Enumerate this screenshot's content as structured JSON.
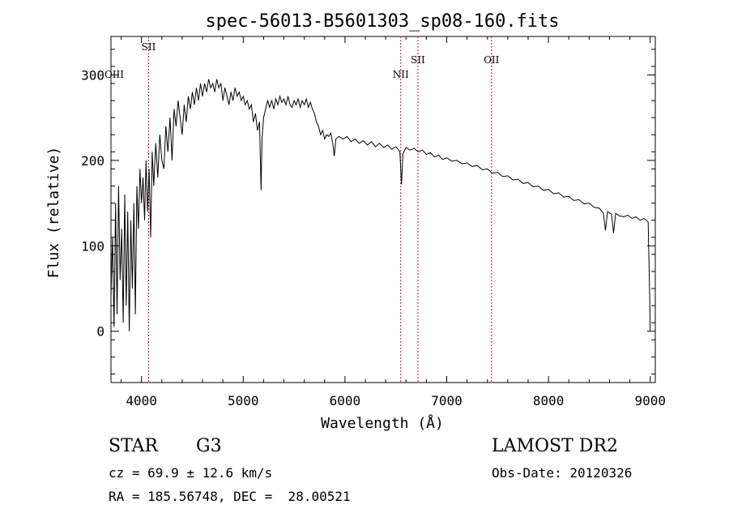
{
  "chart_data": {
    "type": "line",
    "title": "spec-56013-B5601303_sp08-160.fits",
    "xlabel": "Wavelength (Å)",
    "ylabel": "Flux (relative)",
    "xlim": [
      3700,
      9050
    ],
    "ylim": [
      -60,
      345
    ],
    "x_ticks": [
      4000,
      5000,
      6000,
      7000,
      8000,
      9000
    ],
    "y_ticks": [
      0,
      100,
      200,
      300
    ],
    "grid": false,
    "line_color": "#000000",
    "marker_color": "#b22222",
    "series": [
      {
        "values": [
          [
            3700,
            40
          ],
          [
            3715,
            110
          ],
          [
            3730,
            5
          ],
          [
            3745,
            150
          ],
          [
            3760,
            20
          ],
          [
            3775,
            170
          ],
          [
            3790,
            60
          ],
          [
            3805,
            120
          ],
          [
            3820,
            10
          ],
          [
            3835,
            160
          ],
          [
            3850,
            30
          ],
          [
            3865,
            140
          ],
          [
            3880,
            0
          ],
          [
            3895,
            130
          ],
          [
            3910,
            50
          ],
          [
            3925,
            150
          ],
          [
            3940,
            20
          ],
          [
            3955,
            170
          ],
          [
            3970,
            120
          ],
          [
            3985,
            190
          ],
          [
            4000,
            150
          ],
          [
            4015,
            180
          ],
          [
            4030,
            130
          ],
          [
            4045,
            200
          ],
          [
            4060,
            140
          ],
          [
            4075,
            190
          ],
          [
            4090,
            110
          ],
          [
            4105,
            210
          ],
          [
            4120,
            170
          ],
          [
            4140,
            220
          ],
          [
            4160,
            180
          ],
          [
            4180,
            230
          ],
          [
            4200,
            200
          ],
          [
            4220,
            190
          ],
          [
            4240,
            240
          ],
          [
            4260,
            210
          ],
          [
            4280,
            250
          ],
          [
            4300,
            200
          ],
          [
            4320,
            260
          ],
          [
            4340,
            240
          ],
          [
            4360,
            270
          ],
          [
            4380,
            250
          ],
          [
            4400,
            230
          ],
          [
            4420,
            265
          ],
          [
            4440,
            245
          ],
          [
            4460,
            275
          ],
          [
            4480,
            260
          ],
          [
            4500,
            280
          ],
          [
            4520,
            265
          ],
          [
            4540,
            285
          ],
          [
            4560,
            270
          ],
          [
            4580,
            290
          ],
          [
            4600,
            275
          ],
          [
            4620,
            290
          ],
          [
            4640,
            280
          ],
          [
            4660,
            295
          ],
          [
            4680,
            285
          ],
          [
            4700,
            290
          ],
          [
            4720,
            280
          ],
          [
            4740,
            295
          ],
          [
            4760,
            285
          ],
          [
            4780,
            290
          ],
          [
            4800,
            270
          ],
          [
            4820,
            285
          ],
          [
            4840,
            275
          ],
          [
            4860,
            265
          ],
          [
            4880,
            280
          ],
          [
            4900,
            270
          ],
          [
            4920,
            285
          ],
          [
            4940,
            275
          ],
          [
            4960,
            280
          ],
          [
            4980,
            270
          ],
          [
            5000,
            275
          ],
          [
            5020,
            265
          ],
          [
            5040,
            270
          ],
          [
            5060,
            260
          ],
          [
            5080,
            265
          ],
          [
            5100,
            245
          ],
          [
            5120,
            255
          ],
          [
            5140,
            235
          ],
          [
            5160,
            245
          ],
          [
            5175,
            165
          ],
          [
            5185,
            225
          ],
          [
            5200,
            250
          ],
          [
            5220,
            260
          ],
          [
            5240,
            270
          ],
          [
            5260,
            262
          ],
          [
            5280,
            270
          ],
          [
            5300,
            260
          ],
          [
            5320,
            272
          ],
          [
            5340,
            265
          ],
          [
            5360,
            275
          ],
          [
            5380,
            268
          ],
          [
            5400,
            272
          ],
          [
            5420,
            265
          ],
          [
            5440,
            275
          ],
          [
            5460,
            265
          ],
          [
            5480,
            262
          ],
          [
            5500,
            270
          ],
          [
            5520,
            265
          ],
          [
            5540,
            272
          ],
          [
            5560,
            262
          ],
          [
            5580,
            270
          ],
          [
            5600,
            265
          ],
          [
            5620,
            272
          ],
          [
            5640,
            262
          ],
          [
            5660,
            268
          ],
          [
            5680,
            260
          ],
          [
            5700,
            255
          ],
          [
            5720,
            245
          ],
          [
            5740,
            240
          ],
          [
            5760,
            230
          ],
          [
            5780,
            235
          ],
          [
            5800,
            225
          ],
          [
            5820,
            230
          ],
          [
            5840,
            228
          ],
          [
            5860,
            232
          ],
          [
            5880,
            220
          ],
          [
            5895,
            205
          ],
          [
            5910,
            225
          ],
          [
            5940,
            228
          ],
          [
            5980,
            225
          ],
          [
            6020,
            228
          ],
          [
            6060,
            222
          ],
          [
            6100,
            225
          ],
          [
            6140,
            220
          ],
          [
            6180,
            223
          ],
          [
            6220,
            218
          ],
          [
            6260,
            222
          ],
          [
            6300,
            216
          ],
          [
            6340,
            220
          ],
          [
            6380,
            215
          ],
          [
            6420,
            218
          ],
          [
            6460,
            213
          ],
          [
            6500,
            216
          ],
          [
            6540,
            210
          ],
          [
            6555,
            172
          ],
          [
            6570,
            208
          ],
          [
            6600,
            215
          ],
          [
            6640,
            212
          ],
          [
            6680,
            214
          ],
          [
            6720,
            210
          ],
          [
            6760,
            212
          ],
          [
            6800,
            207
          ],
          [
            6840,
            209
          ],
          [
            6880,
            204
          ],
          [
            6920,
            206
          ],
          [
            6960,
            201
          ],
          [
            7000,
            203
          ],
          [
            7050,
            199
          ],
          [
            7100,
            200
          ],
          [
            7150,
            196
          ],
          [
            7200,
            197
          ],
          [
            7250,
            193
          ],
          [
            7300,
            194
          ],
          [
            7350,
            189
          ],
          [
            7400,
            190
          ],
          [
            7450,
            185
          ],
          [
            7500,
            186
          ],
          [
            7550,
            181
          ],
          [
            7600,
            182
          ],
          [
            7650,
            177
          ],
          [
            7700,
            178
          ],
          [
            7750,
            173
          ],
          [
            7800,
            174
          ],
          [
            7850,
            169
          ],
          [
            7900,
            170
          ],
          [
            7950,
            165
          ],
          [
            8000,
            166
          ],
          [
            8050,
            161
          ],
          [
            8100,
            162
          ],
          [
            8150,
            157
          ],
          [
            8200,
            158
          ],
          [
            8250,
            153
          ],
          [
            8300,
            154
          ],
          [
            8350,
            149
          ],
          [
            8400,
            150
          ],
          [
            8450,
            145
          ],
          [
            8500,
            144
          ],
          [
            8540,
            138
          ],
          [
            8560,
            118
          ],
          [
            8580,
            140
          ],
          [
            8620,
            137
          ],
          [
            8640,
            115
          ],
          [
            8660,
            138
          ],
          [
            8700,
            135
          ],
          [
            8740,
            134
          ],
          [
            8780,
            136
          ],
          [
            8820,
            132
          ],
          [
            8860,
            134
          ],
          [
            8900,
            130
          ],
          [
            8940,
            132
          ],
          [
            8980,
            128
          ],
          [
            8995,
            40
          ],
          [
            9000,
            0
          ]
        ]
      }
    ],
    "line_markers": [
      {
        "label": "SII",
        "x": 4070
      },
      {
        "label": "OIII",
        "x": 3727
      },
      {
        "label": "NII",
        "x": 6548
      },
      {
        "label": "SII",
        "x": 6717
      },
      {
        "label": "OII",
        "x": 7440
      }
    ]
  },
  "info": {
    "object_type": "STAR",
    "subclass": "G3",
    "survey": "LAMOST DR2",
    "cz": "cz = 69.9 ± 12.6 km/s",
    "obs_date": "Obs-Date: 20120326",
    "coords": "RA = 185.56748, DEC =  28.00521"
  }
}
